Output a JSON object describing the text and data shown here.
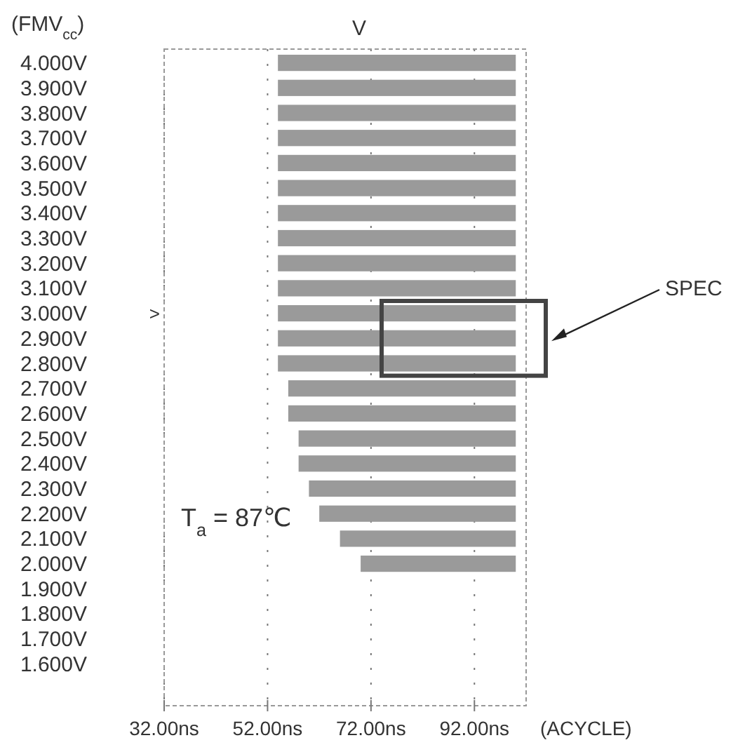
{
  "chart_data": {
    "type": "bar",
    "orientation": "horizontal",
    "categories": [
      "4.000V",
      "3.900V",
      "3.800V",
      "3.700V",
      "3.600V",
      "3.500V",
      "3.400V",
      "3.300V",
      "3.200V",
      "3.100V",
      "3.000V",
      "2.900V",
      "2.800V",
      "2.700V",
      "2.600V",
      "2.500V",
      "2.400V",
      "2.300V",
      "2.200V",
      "2.100V",
      "2.000V",
      "1.900V",
      "1.800V",
      "1.700V",
      "1.600V"
    ],
    "base": [
      54,
      54,
      54,
      54,
      54,
      54,
      54,
      54,
      54,
      54,
      54,
      54,
      54,
      56,
      56,
      58,
      58,
      60,
      62,
      66,
      70,
      null,
      null,
      null,
      null
    ],
    "values": [
      46,
      46,
      46,
      46,
      46,
      46,
      46,
      46,
      46,
      46,
      46,
      46,
      46,
      44,
      44,
      42,
      42,
      40,
      38,
      34,
      30,
      null,
      null,
      null,
      null
    ],
    "color": "#9a9a9a",
    "xlim": [
      32,
      102
    ],
    "xticks": [
      {
        "value": 32,
        "label": "32.00ns"
      },
      {
        "value": 52,
        "label": "52.00ns"
      },
      {
        "value": 72,
        "label": "72.00ns"
      },
      {
        "value": 92,
        "label": "92.00ns"
      }
    ],
    "xlabel": "(ACYCLE)",
    "ylabel": "(FMV$_{cc}$)",
    "grid": "x",
    "annotations": [
      "V",
      ">",
      "SPEC",
      "T$_{a}$ = 87℃"
    ]
  }
}
